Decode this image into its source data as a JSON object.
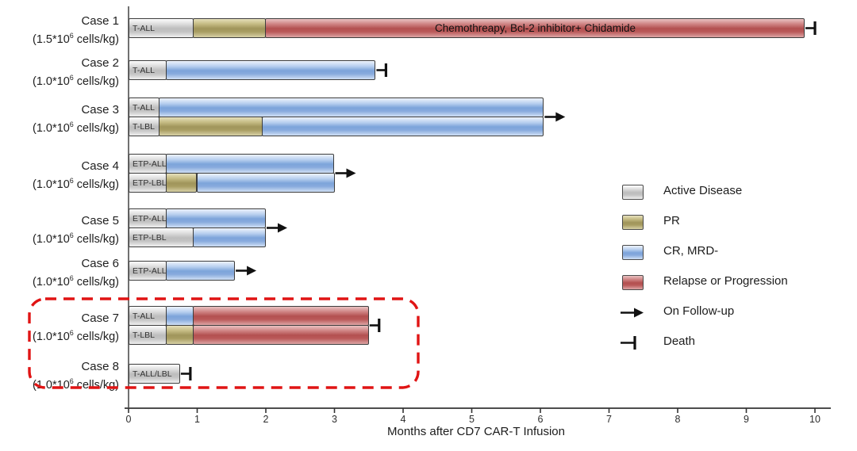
{
  "axis": {
    "label": "Months after CD7 CAR-T Infusion",
    "ticks": [
      0,
      1,
      2,
      3,
      4,
      5,
      6,
      7,
      8,
      9,
      10
    ]
  },
  "legend": {
    "items": [
      {
        "type": "box",
        "state": "active",
        "label": "Active Disease"
      },
      {
        "type": "box",
        "state": "pr",
        "label": "PR"
      },
      {
        "type": "box",
        "state": "cr",
        "label": "CR, MRD-"
      },
      {
        "type": "box",
        "state": "relapse",
        "label": "Relapse or Progression"
      },
      {
        "type": "arrow",
        "state": "",
        "label": "On Follow-up"
      },
      {
        "type": "death",
        "state": "",
        "label": "Death"
      }
    ]
  },
  "colors": {
    "active": "#c2c2c2",
    "pr": "#a99e63",
    "cr": "#84a8db",
    "relapse": "#b95656",
    "highlight": "#e01414",
    "axis": "#4d4d4d",
    "marker": "#111111"
  },
  "chart_data": {
    "type": "swimmer",
    "xlabel": "Months after CD7 CAR-T Infusion",
    "xlim": [
      0,
      10.5
    ],
    "x_ticks": [
      0,
      1,
      2,
      3,
      4,
      5,
      6,
      7,
      8,
      9,
      10
    ],
    "states_legend": [
      "Active Disease",
      "PR",
      "CR, MRD-",
      "Relapse or Progression"
    ],
    "cases": [
      {
        "name": "Case 1",
        "dose": {
          "prefix": "(1.5*10",
          "sup": "6",
          "suffix": " cells/kg)"
        },
        "marker": "death",
        "rows": [
          {
            "label": "T-ALL",
            "segments": [
              {
                "state": "active",
                "start": 0,
                "end": 0.95
              },
              {
                "state": "pr",
                "start": 0.95,
                "end": 2.0
              },
              {
                "state": "relapse",
                "start": 2.0,
                "end": 9.85,
                "text": "Chemothreapy,  Bcl-2 inhibitor+ Chidamide"
              }
            ]
          }
        ]
      },
      {
        "name": "Case 2",
        "dose": {
          "prefix": "(1.0*10",
          "sup": "6",
          "suffix": " cells/kg)"
        },
        "marker": "death",
        "rows": [
          {
            "label": "T-ALL",
            "segments": [
              {
                "state": "active",
                "start": 0,
                "end": 0.55
              },
              {
                "state": "cr",
                "start": 0.55,
                "end": 3.6
              }
            ]
          }
        ]
      },
      {
        "name": "Case 3",
        "dose": {
          "prefix": "(1.0*10",
          "sup": "6",
          "suffix": " cells/kg)"
        },
        "marker": "arrow",
        "rows": [
          {
            "label": "T-ALL",
            "segments": [
              {
                "state": "active",
                "start": 0,
                "end": 0.45
              },
              {
                "state": "cr",
                "start": 0.45,
                "end": 6.05
              }
            ]
          },
          {
            "label": "T-LBL",
            "segments": [
              {
                "state": "active",
                "start": 0,
                "end": 0.45
              },
              {
                "state": "pr",
                "start": 0.45,
                "end": 1.95
              },
              {
                "state": "cr",
                "start": 1.95,
                "end": 6.05
              }
            ]
          }
        ]
      },
      {
        "name": "Case 4",
        "dose": {
          "prefix": "(1.0*10",
          "sup": "6",
          "suffix": " cells/kg)"
        },
        "marker": "arrow",
        "rows": [
          {
            "label": "ETP-ALL",
            "segments": [
              {
                "state": "active",
                "start": 0,
                "end": 0.55
              },
              {
                "state": "cr",
                "start": 0.55,
                "end": 3.0
              }
            ]
          },
          {
            "label": "ETP-LBL",
            "segments": [
              {
                "state": "active",
                "start": 0,
                "end": 0.55
              },
              {
                "state": "pr",
                "start": 0.55,
                "end": 1.0
              },
              {
                "state": "cr",
                "start": 1.0,
                "end": 3.0
              }
            ]
          }
        ]
      },
      {
        "name": "Case 5",
        "dose": {
          "prefix": "(1.0*10",
          "sup": "6",
          "suffix": " cells/kg)"
        },
        "marker": "arrow",
        "rows": [
          {
            "label": "ETP-ALL",
            "segments": [
              {
                "state": "active",
                "start": 0,
                "end": 0.55
              },
              {
                "state": "cr",
                "start": 0.55,
                "end": 2.0
              }
            ]
          },
          {
            "label": "ETP-LBL",
            "segments": [
              {
                "state": "active",
                "start": 0,
                "end": 0.95
              },
              {
                "state": "cr",
                "start": 0.95,
                "end": 2.0
              }
            ]
          }
        ]
      },
      {
        "name": "Case 6",
        "dose": {
          "prefix": "(1.0*10",
          "sup": "6",
          "suffix": " cells/kg)"
        },
        "marker": "arrow",
        "rows": [
          {
            "label": "ETP-ALL",
            "segments": [
              {
                "state": "active",
                "start": 0,
                "end": 0.55
              },
              {
                "state": "cr",
                "start": 0.55,
                "end": 1.55
              }
            ]
          }
        ]
      },
      {
        "name": "Case 7",
        "dose": {
          "prefix": "(1.0*10",
          "sup": "6",
          "suffix": " cells/kg)"
        },
        "marker": "death",
        "rows": [
          {
            "label": "T-ALL",
            "segments": [
              {
                "state": "active",
                "start": 0,
                "end": 0.55
              },
              {
                "state": "cr",
                "start": 0.55,
                "end": 0.95
              },
              {
                "state": "relapse",
                "start": 0.95,
                "end": 3.5
              }
            ]
          },
          {
            "label": "T-LBL",
            "segments": [
              {
                "state": "active",
                "start": 0,
                "end": 0.55
              },
              {
                "state": "pr",
                "start": 0.55,
                "end": 0.95
              },
              {
                "state": "relapse",
                "start": 0.95,
                "end": 3.5
              }
            ]
          }
        ]
      },
      {
        "name": "Case 8",
        "dose": {
          "prefix": "(1.0*10",
          "sup": "6",
          "suffix": " cells/kg)"
        },
        "marker": "death",
        "rows": [
          {
            "label": "T-ALL/LBL",
            "segments": [
              {
                "state": "active",
                "start": 0,
                "end": 0.75
              }
            ]
          }
        ]
      },
      {
        "name": "",
        "dose": null,
        "marker": null,
        "rows": []
      }
    ],
    "highlighted_cases": [
      "Case 7",
      "Case 8"
    ]
  }
}
